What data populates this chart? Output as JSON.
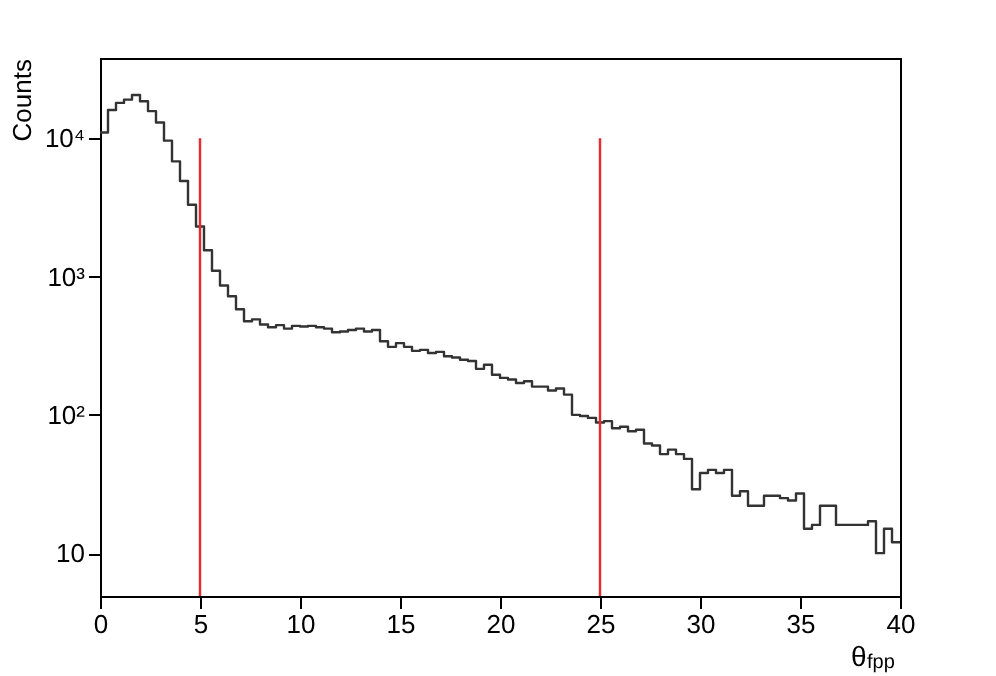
{
  "chart_data": {
    "type": "histogram",
    "xlabel": "θ$_{fpp}$",
    "ylabel": "Counts",
    "bins": [
      0,
      0.4,
      0.8,
      1.2,
      1.6,
      2,
      2.4,
      2.8,
      3.2,
      3.6,
      4,
      4.4,
      4.8,
      5.2,
      5.6,
      6,
      6.4,
      6.8,
      7.2,
      7.6,
      8,
      8.4,
      8.8,
      9.2,
      9.6,
      10,
      10.4,
      10.8,
      11.2,
      11.6,
      12,
      12.4,
      12.8,
      13.2,
      13.6,
      14,
      14.4,
      14.8,
      15.2,
      15.6,
      16,
      16.4,
      16.8,
      17.2,
      17.6,
      18,
      18.4,
      18.8,
      19.2,
      19.6,
      20,
      20.4,
      20.8,
      21.2,
      21.6,
      22,
      22.4,
      22.8,
      23.2,
      23.6,
      24,
      24.4,
      24.8,
      25.2,
      25.6,
      26,
      26.4,
      26.8,
      27.2,
      27.6,
      28,
      28.4,
      28.8,
      29.2,
      29.6,
      30,
      30.4,
      30.8,
      31.2,
      31.6,
      32,
      32.4,
      32.8,
      33.2,
      33.6,
      34,
      34.4,
      34.8,
      35.2,
      35.6,
      36,
      36.4,
      36.8,
      37.2,
      37.6,
      38,
      38.4,
      38.8,
      39.2,
      39.6,
      40
    ],
    "values": [
      11000,
      16000,
      18000,
      19000,
      20500,
      18500,
      15700,
      13000,
      9600,
      6800,
      4900,
      3300,
      2300,
      1550,
      1100,
      860,
      720,
      580,
      475,
      490,
      450,
      430,
      445,
      420,
      440,
      435,
      440,
      430,
      420,
      395,
      400,
      410,
      420,
      400,
      410,
      340,
      310,
      330,
      310,
      290,
      295,
      280,
      285,
      265,
      260,
      250,
      245,
      215,
      230,
      195,
      185,
      180,
      170,
      175,
      160,
      160,
      150,
      155,
      140,
      100,
      98,
      95,
      88,
      90,
      80,
      82,
      76,
      78,
      62,
      60,
      52,
      56,
      52,
      48,
      29,
      38,
      40,
      38,
      40,
      26,
      28,
      22,
      22,
      26,
      26,
      25,
      24,
      27,
      15,
      16,
      22,
      22,
      16,
      16,
      16,
      16,
      17,
      10,
      15,
      12
    ],
    "color": "#333333",
    "log": "y",
    "xlim": [
      0,
      40
    ],
    "xticks": [
      0,
      5,
      10,
      15,
      20,
      25,
      30,
      35,
      40
    ],
    "ylim": [
      4.9,
      38000
    ],
    "yticks": [
      {
        "value": 10,
        "label": "10"
      },
      {
        "value": 100,
        "label": "10²"
      },
      {
        "value": 1000,
        "label": "10³"
      },
      {
        "value": 10000,
        "label": "10⁴"
      }
    ],
    "grid": false,
    "ref_lines": [
      {
        "axis": "x",
        "value": 5,
        "color": "#e8282b"
      },
      {
        "axis": "x",
        "value": 25,
        "color": "#e8282b"
      }
    ]
  }
}
